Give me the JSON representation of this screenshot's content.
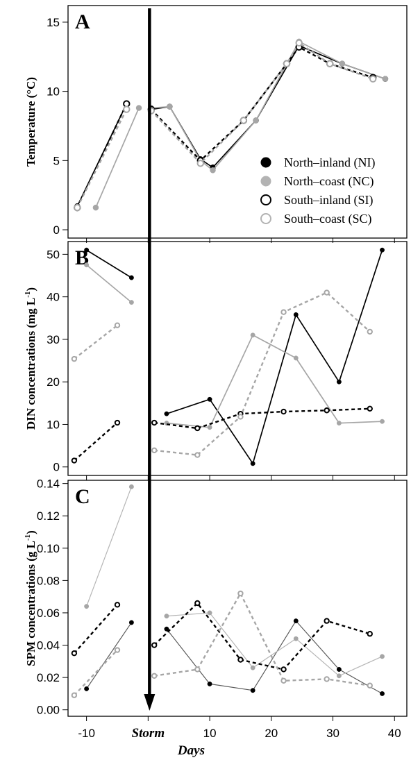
{
  "chart_data": [
    {
      "type": "line",
      "panel": "A",
      "ylabel": "Temperature (°C)",
      "ylim": [
        -0.6,
        16.2
      ],
      "yticks": [
        0,
        5,
        10,
        15
      ],
      "xlim": [
        -13,
        42
      ],
      "series": [
        {
          "name": "North–inland (NI)",
          "style": "solid",
          "color": "#000000",
          "marker": "filled",
          "markerColor": "#000000",
          "segments": [
            [
              [
                -11.5,
                1.7
              ],
              [
                -3.5,
                9.1
              ]
            ],
            [
              [
                0.5,
                8.7
              ],
              [
                3.5,
                8.9
              ],
              [
                8.5,
                5.1
              ],
              [
                10.5,
                4.5
              ],
              [
                17.5,
                7.9
              ],
              [
                24.5,
                13.3
              ],
              [
                31.5,
                12.0
              ],
              [
                38.5,
                10.9
              ]
            ]
          ]
        },
        {
          "name": "North–coast (NC)",
          "style": "solid",
          "color": "#a6a6a6",
          "marker": "filled",
          "markerColor": "#a6a6a6",
          "segments": [
            [
              [
                -8.5,
                1.6
              ],
              [
                -1.5,
                8.8
              ]
            ],
            [
              [
                0.5,
                8.8
              ],
              [
                3.5,
                8.9
              ],
              [
                8.5,
                5.0
              ],
              [
                10.5,
                4.3
              ],
              [
                17.5,
                7.9
              ],
              [
                24.5,
                13.6
              ],
              [
                31.5,
                12.0
              ],
              [
                38.5,
                10.9
              ]
            ]
          ]
        },
        {
          "name": "South–inland (SI)",
          "style": "dashed",
          "color": "#000000",
          "marker": "open",
          "markerColor": "#000000",
          "segments": [
            [
              [
                -11.5,
                1.6
              ],
              [
                -3.5,
                9.1
              ]
            ],
            [
              [
                0.5,
                8.7
              ],
              [
                8.5,
                5.0
              ],
              [
                15.5,
                7.9
              ],
              [
                22.5,
                12.0
              ],
              [
                24.5,
                13.2
              ],
              [
                29.5,
                12.0
              ],
              [
                36.5,
                11.0
              ]
            ]
          ]
        },
        {
          "name": "South–coast (SC)",
          "style": "dashed",
          "color": "#a6a6a6",
          "marker": "open",
          "markerColor": "#a6a6a6",
          "segments": [
            [
              [
                -11.5,
                1.6
              ],
              [
                -3.5,
                8.7
              ]
            ],
            [
              [
                0.5,
                8.6
              ],
              [
                8.5,
                4.8
              ],
              [
                15.5,
                7.9
              ],
              [
                22.5,
                12.0
              ],
              [
                24.5,
                13.5
              ],
              [
                29.5,
                12.0
              ],
              [
                36.5,
                10.9
              ]
            ]
          ]
        }
      ]
    },
    {
      "type": "line",
      "panel": "B",
      "ylabel": "DIN concentrations (mg L",
      "ylabel_sup": "-1",
      "ylabel_end": ")",
      "ylim": [
        -2,
        53
      ],
      "yticks": [
        0,
        10,
        20,
        30,
        40,
        50
      ],
      "xlim": [
        -13,
        42
      ],
      "series": [
        {
          "name": "North–inland (NI)",
          "style": "solid",
          "color": "#000000",
          "marker": "filled",
          "markerColor": "#000000",
          "segments": [
            [
              [
                -10,
                51.0
              ],
              [
                -2.7,
                44.5
              ]
            ],
            [
              [
                3,
                12.5
              ],
              [
                10,
                15.9
              ],
              [
                17,
                0.8
              ],
              [
                24,
                35.8
              ],
              [
                31,
                20.0
              ],
              [
                38,
                51.0
              ]
            ]
          ]
        },
        {
          "name": "North–coast (NC)",
          "style": "solid",
          "color": "#a6a6a6",
          "marker": "filled",
          "markerColor": "#a6a6a6",
          "segments": [
            [
              [
                -10,
                47.5
              ],
              [
                -2.7,
                38.7
              ]
            ],
            [
              [
                3,
                10.3
              ],
              [
                10,
                9.3
              ],
              [
                17,
                31.0
              ],
              [
                24,
                25.6
              ],
              [
                31,
                10.3
              ],
              [
                38,
                10.7
              ]
            ]
          ]
        },
        {
          "name": "South–inland (SI)",
          "style": "dashed",
          "color": "#000000",
          "marker": "open",
          "markerColor": "#000000",
          "segments": [
            [
              [
                -12,
                1.5
              ],
              [
                -5,
                10.4
              ]
            ],
            [
              [
                1,
                10.4
              ],
              [
                8,
                9.1
              ],
              [
                15,
                12.5
              ],
              [
                22,
                13.0
              ],
              [
                29,
                13.3
              ],
              [
                36,
                13.7
              ]
            ]
          ]
        },
        {
          "name": "South–coast (SC)",
          "style": "dashed",
          "color": "#a6a6a6",
          "marker": "open",
          "markerColor": "#a6a6a6",
          "segments": [
            [
              [
                -12,
                25.4
              ],
              [
                -5,
                33.3
              ]
            ],
            [
              [
                1,
                3.9
              ],
              [
                8,
                2.8
              ],
              [
                15,
                11.8
              ],
              [
                22,
                36.4
              ],
              [
                29,
                41.0
              ],
              [
                36,
                31.8
              ]
            ]
          ]
        }
      ]
    },
    {
      "type": "line",
      "panel": "C",
      "ylabel": "SPM concentrations (g L",
      "ylabel_sup": "-1",
      "ylabel_end": ")",
      "xlabel": "Days",
      "ylim": [
        -0.004,
        0.142
      ],
      "yticks": [
        0.0,
        0.02,
        0.04,
        0.06,
        0.08,
        0.1,
        0.12,
        0.14
      ],
      "xlim": [
        -13,
        42
      ],
      "xticks": [
        -10,
        0,
        10,
        20,
        30,
        40
      ],
      "xtick_labels": [
        "-10",
        "Storm",
        "10",
        "20",
        "30",
        "40"
      ],
      "series": [
        {
          "name": "North–inland (NI)",
          "style": "thin",
          "color": "#595959",
          "marker": "filled",
          "markerColor": "#000000",
          "segments": [
            [
              [
                -10,
                0.013
              ],
              [
                -2.7,
                0.054
              ]
            ],
            [
              [
                3,
                0.05
              ],
              [
                10,
                0.016
              ],
              [
                17,
                0.012
              ],
              [
                24,
                0.055
              ],
              [
                31,
                0.025
              ],
              [
                38,
                0.01
              ]
            ]
          ]
        },
        {
          "name": "North–coast (NC)",
          "style": "thin",
          "color": "#b5b5b5",
          "marker": "filled",
          "markerColor": "#a6a6a6",
          "segments": [
            [
              [
                -10,
                0.064
              ],
              [
                -2.7,
                0.138
              ]
            ],
            [
              [
                3,
                0.058
              ],
              [
                10,
                0.06
              ],
              [
                17,
                0.026
              ],
              [
                24,
                0.044
              ],
              [
                31,
                0.021
              ],
              [
                38,
                0.033
              ]
            ]
          ]
        },
        {
          "name": "South–inland (SI)",
          "style": "dashed",
          "color": "#000000",
          "marker": "open",
          "markerColor": "#000000",
          "segments": [
            [
              [
                -12,
                0.035
              ],
              [
                -5,
                0.065
              ]
            ],
            [
              [
                1,
                0.04
              ],
              [
                8,
                0.066
              ],
              [
                15,
                0.031
              ],
              [
                22,
                0.025
              ],
              [
                29,
                0.055
              ],
              [
                36,
                0.047
              ]
            ]
          ]
        },
        {
          "name": "South–coast (SC)",
          "style": "dashed",
          "color": "#a6a6a6",
          "marker": "open",
          "markerColor": "#a6a6a6",
          "segments": [
            [
              [
                -12,
                0.009
              ],
              [
                -5,
                0.037
              ]
            ],
            [
              [
                1,
                0.021
              ],
              [
                8,
                0.025
              ],
              [
                15,
                0.072
              ],
              [
                22,
                0.018
              ],
              [
                29,
                0.019
              ],
              [
                36,
                0.015
              ]
            ]
          ]
        }
      ]
    }
  ],
  "legend": {
    "placement": "inside panel A, lower right",
    "entries": [
      {
        "label": "North–inland (NI)",
        "marker": "filled",
        "color": "#000000"
      },
      {
        "label": "North–coast (NC)",
        "marker": "filled",
        "color": "#b3b3b3"
      },
      {
        "label": "South–inland (SI)",
        "marker": "open",
        "color": "#000000"
      },
      {
        "label": "South–coast (SC)",
        "marker": "open",
        "color": "#b3b3b3"
      }
    ]
  },
  "storm_marker": {
    "x": 0,
    "label": "Storm"
  },
  "panel_letters": [
    "A",
    "B",
    "C"
  ]
}
